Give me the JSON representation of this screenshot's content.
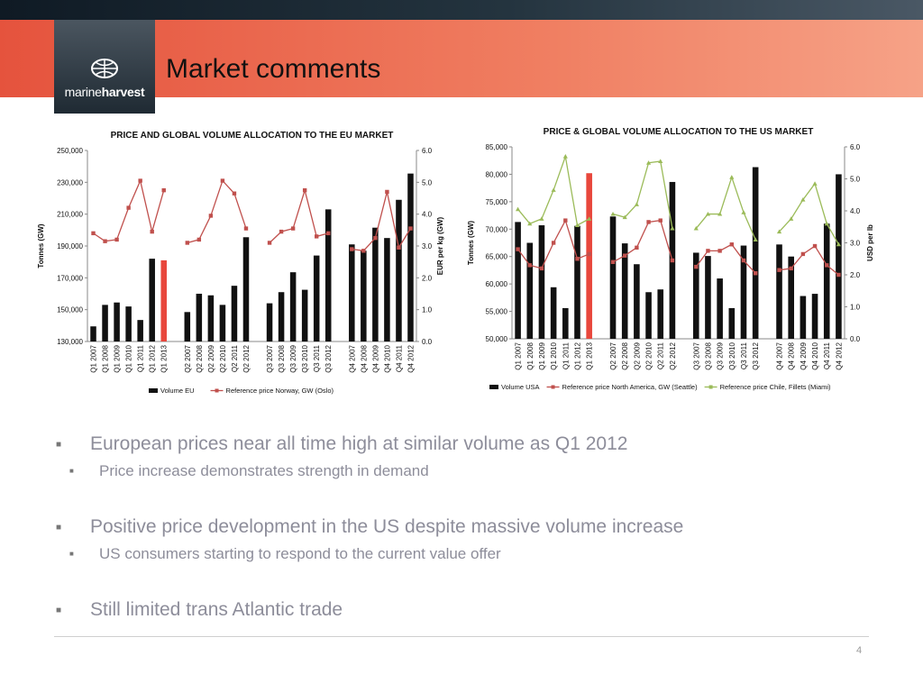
{
  "slide": {
    "title": "Market comments",
    "logo": {
      "part1": "marine",
      "part2": "harvest"
    },
    "page_number": "4"
  },
  "bullets": [
    {
      "level": 1,
      "text": "European prices near all time high at similar volume as Q1 2012"
    },
    {
      "level": 2,
      "text": "Price increase demonstrates strength in demand"
    },
    {
      "level": 1,
      "text": "Positive price development in the US despite massive volume increase"
    },
    {
      "level": 2,
      "text": "US consumers starting to respond to the current value offer"
    },
    {
      "level": 1,
      "text": "Still limited trans Atlantic trade"
    }
  ],
  "colors": {
    "volume": "#111111",
    "highlight": "#e8473c",
    "price": "#c0504d",
    "price2": "#9bbb59",
    "axis": "#888888"
  },
  "chart_data": [
    {
      "type": "bar",
      "title": "PRICE AND GLOBAL VOLUME ALLOCATION TO THE EU MARKET",
      "ylabel": "Tonnes (GW)",
      "y2label": "EUR per kg (GW)",
      "ylim": [
        130000,
        250000
      ],
      "y2lim": [
        0,
        6
      ],
      "yticks": [
        "130,000",
        "150,000",
        "170,000",
        "190,000",
        "210,000",
        "230,000",
        "250,000"
      ],
      "y2ticks": [
        "0.0",
        "1.0",
        "2.0",
        "3.0",
        "4.0",
        "5.0",
        "6.0"
      ],
      "grid": false,
      "legend_position": "bottom",
      "highlight_category": "Q1 2013",
      "categories": [
        "Q1 2007",
        "Q1 2008",
        "Q1 2009",
        "Q1 2010",
        "Q1 2011",
        "Q1 2012",
        "Q1 2013",
        "",
        "Q2 2007",
        "Q2 2008",
        "Q2 2009",
        "Q2 2010",
        "Q2 2011",
        "Q2 2012",
        "",
        "Q3 2007",
        "Q3 2008",
        "Q3 2009",
        "Q3 2010",
        "Q3 2011",
        "Q3 2012",
        "",
        "Q4 2007",
        "Q4 2008",
        "Q4 2009",
        "Q4 2010",
        "Q4 2011",
        "Q4 2012"
      ],
      "series": [
        {
          "name": "Volume EU",
          "type": "bar",
          "axis": "left",
          "values": [
            139500,
            153000,
            154500,
            152000,
            143500,
            182000,
            181000,
            null,
            148500,
            160000,
            159000,
            153000,
            165000,
            195500,
            null,
            154000,
            161000,
            173500,
            162500,
            184000,
            213000,
            null,
            191000,
            187000,
            201500,
            195000,
            219000,
            235500
          ]
        },
        {
          "name": "Reference price Norway, GW (Oslo)",
          "type": "line",
          "axis": "right",
          "values": [
            3.4,
            3.15,
            3.2,
            4.2,
            5.05,
            3.45,
            4.75,
            null,
            3.1,
            3.2,
            3.95,
            5.05,
            4.65,
            3.55,
            null,
            3.1,
            3.45,
            3.55,
            4.75,
            3.3,
            3.4,
            null,
            2.9,
            2.85,
            3.25,
            4.7,
            2.95,
            3.55
          ]
        }
      ]
    },
    {
      "type": "bar",
      "title": "PRICE & GLOBAL VOLUME ALLOCATION TO THE US MARKET",
      "ylabel": "Tonnes (GW)",
      "y2label": "USD per lb",
      "ylim": [
        50000,
        85000
      ],
      "y2lim": [
        0,
        6
      ],
      "yticks": [
        "50,000",
        "55,000",
        "60,000",
        "65,000",
        "70,000",
        "75,000",
        "80,000",
        "85,000"
      ],
      "y2ticks": [
        "0.0",
        "1.0",
        "2.0",
        "3.0",
        "4.0",
        "5.0",
        "6.0"
      ],
      "grid": false,
      "legend_position": "bottom",
      "highlight_category": "Q1 2013",
      "categories": [
        "Q1 2007",
        "Q1 2008",
        "Q1 2009",
        "Q1 2010",
        "Q1 2011",
        "Q1 2012",
        "Q1 2013",
        "",
        "Q2 2007",
        "Q2 2008",
        "Q2 2009",
        "Q2 2010",
        "Q2 2011",
        "Q2 2012",
        "",
        "Q3 2007",
        "Q3 2008",
        "Q3 2009",
        "Q3 2010",
        "Q3 2011",
        "Q3 2012",
        "",
        "Q4 2007",
        "Q4 2008",
        "Q4 2009",
        "Q4 2010",
        "Q4 2011",
        "Q4 2012"
      ],
      "series": [
        {
          "name": "Volume USA",
          "type": "bar",
          "axis": "left",
          "values": [
            71300,
            67500,
            70700,
            59400,
            55600,
            70600,
            80200,
            null,
            72300,
            67400,
            63600,
            58500,
            59000,
            78600,
            null,
            65700,
            65100,
            61000,
            55600,
            67000,
            81300,
            null,
            67200,
            65000,
            57800,
            58200,
            71000,
            80000
          ]
        },
        {
          "name": "Reference price North America, GW (Seattle)",
          "type": "line",
          "axis": "right",
          "values": [
            2.8,
            2.3,
            2.2,
            3.0,
            3.7,
            2.5,
            2.65,
            null,
            2.4,
            2.6,
            2.85,
            3.65,
            3.7,
            2.45,
            null,
            2.25,
            2.75,
            2.75,
            2.95,
            2.45,
            2.05,
            null,
            2.15,
            2.2,
            2.65,
            2.9,
            2.3,
            2.0
          ]
        },
        {
          "name": "Reference price Chile, Fillets (Miami)",
          "type": "line",
          "axis": "right",
          "values": [
            4.05,
            3.6,
            3.75,
            4.65,
            5.7,
            3.55,
            3.75,
            null,
            3.9,
            3.8,
            4.2,
            5.5,
            5.55,
            3.45,
            null,
            3.45,
            3.9,
            3.9,
            5.05,
            3.95,
            3.1,
            null,
            3.35,
            3.75,
            4.35,
            4.85,
            3.6,
            2.95
          ]
        }
      ]
    }
  ]
}
